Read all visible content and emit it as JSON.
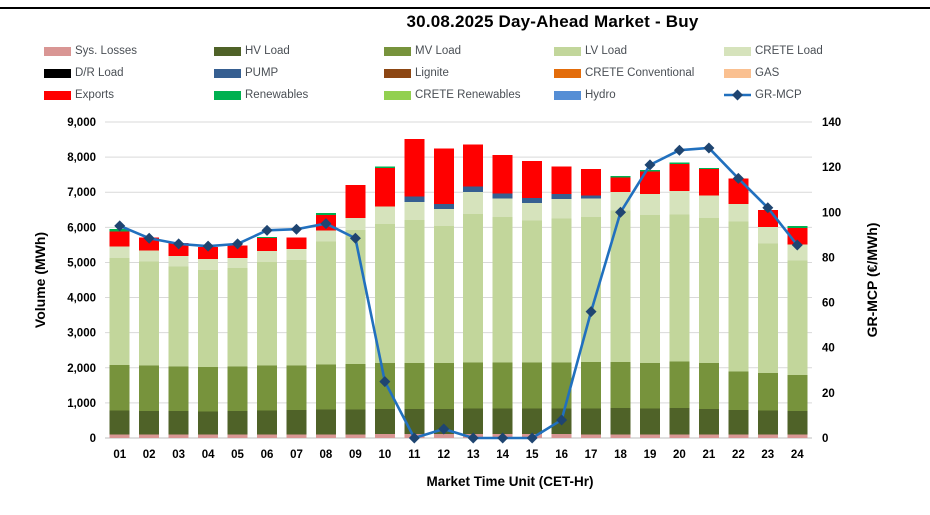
{
  "page": {
    "title": "30.08.2025  Day-Ahead Market - Buy"
  },
  "chart_data": {
    "type": "bar",
    "subtype": "stacked-bar-with-line",
    "title": "30.08.2025  Day-Ahead Market - Buy",
    "xlabel": "Market Time Unit (CET-Hr)",
    "ylabel_left": "Volume (MWh)",
    "ylabel_right": "GR-MCP (€/MWh)",
    "grid": true,
    "legend_position": "top",
    "axis_left": {
      "min": 0,
      "max": 9000,
      "step": 1000
    },
    "axis_right": {
      "min": 0,
      "max": 140,
      "step": 20
    },
    "categories": [
      "01",
      "02",
      "03",
      "04",
      "05",
      "06",
      "07",
      "08",
      "09",
      "10",
      "11",
      "12",
      "13",
      "14",
      "15",
      "16",
      "17",
      "18",
      "19",
      "20",
      "21",
      "22",
      "23",
      "24"
    ],
    "series": [
      {
        "name": "Sys. Losses",
        "color": "#D99694",
        "values": [
          100,
          100,
          95,
          95,
          95,
          95,
          100,
          100,
          105,
          110,
          110,
          110,
          110,
          110,
          110,
          110,
          105,
          105,
          100,
          105,
          100,
          100,
          95,
          95
        ]
      },
      {
        "name": "HV Load",
        "color": "#4F6228",
        "values": [
          680,
          675,
          670,
          665,
          670,
          690,
          700,
          705,
          710,
          715,
          715,
          720,
          730,
          730,
          730,
          730,
          740,
          750,
          740,
          745,
          720,
          700,
          690,
          680
        ]
      },
      {
        "name": "MV Load",
        "color": "#77933C",
        "values": [
          1300,
          1285,
          1265,
          1260,
          1265,
          1275,
          1270,
          1295,
          1295,
          1305,
          1305,
          1300,
          1310,
          1310,
          1310,
          1310,
          1315,
          1305,
          1290,
          1325,
          1310,
          1090,
          1060,
          1020
        ]
      },
      {
        "name": "LV Load",
        "color": "#C2D69B",
        "values": [
          3040,
          2960,
          2850,
          2770,
          2810,
          2950,
          3000,
          3490,
          3820,
          3960,
          4080,
          3910,
          4235,
          4150,
          4050,
          4100,
          4140,
          4320,
          4220,
          4190,
          4130,
          4270,
          3700,
          3260
        ]
      },
      {
        "name": "CRETE Load",
        "color": "#D6E3BC",
        "values": [
          330,
          320,
          310,
          310,
          290,
          310,
          320,
          320,
          330,
          500,
          505,
          485,
          615,
          520,
          500,
          550,
          520,
          520,
          600,
          675,
          640,
          500,
          470,
          450
        ]
      },
      {
        "name": "D/R Load",
        "color": "#000000",
        "values": [
          0,
          0,
          0,
          0,
          0,
          0,
          0,
          0,
          0,
          0,
          0,
          0,
          0,
          0,
          0,
          0,
          0,
          0,
          0,
          0,
          0,
          0,
          0,
          0
        ]
      },
      {
        "name": "PUMP",
        "color": "#365F91",
        "values": [
          0,
          0,
          0,
          0,
          0,
          0,
          0,
          0,
          0,
          0,
          160,
          145,
          160,
          140,
          140,
          150,
          80,
          0,
          0,
          0,
          0,
          0,
          0,
          0
        ]
      },
      {
        "name": "Lignite",
        "color": "#8C4613",
        "values": [
          0,
          0,
          0,
          0,
          0,
          0,
          0,
          0,
          0,
          0,
          0,
          0,
          0,
          0,
          0,
          0,
          0,
          0,
          0,
          0,
          0,
          0,
          0,
          0
        ]
      },
      {
        "name": "CRETE Conventional",
        "color": "#E36C0A",
        "values": [
          0,
          0,
          0,
          0,
          0,
          0,
          0,
          0,
          0,
          0,
          0,
          0,
          0,
          0,
          0,
          0,
          0,
          0,
          0,
          0,
          0,
          0,
          0,
          0
        ]
      },
      {
        "name": "GAS",
        "color": "#FAC090",
        "values": [
          0,
          0,
          0,
          0,
          0,
          0,
          0,
          0,
          0,
          0,
          0,
          0,
          0,
          0,
          0,
          0,
          0,
          0,
          0,
          0,
          0,
          0,
          0,
          0
        ]
      },
      {
        "name": "Exports",
        "color": "#FF0000",
        "values": [
          430,
          370,
          360,
          340,
          350,
          380,
          320,
          435,
          940,
          1095,
          1635,
          1580,
          1200,
          1100,
          1050,
          780,
          755,
          420,
          640,
          760,
          760,
          730,
          480,
          475
        ]
      },
      {
        "name": "Renewables",
        "color": "#00B050",
        "values": [
          70,
          0,
          0,
          0,
          0,
          20,
          0,
          60,
          0,
          45,
          0,
          0,
          0,
          0,
          0,
          0,
          0,
          40,
          45,
          45,
          30,
          0,
          0,
          65
        ]
      },
      {
        "name": "CRETE Renewables",
        "color": "#92D050",
        "values": [
          0,
          0,
          0,
          0,
          0,
          0,
          0,
          0,
          0,
          0,
          0,
          0,
          0,
          0,
          0,
          0,
          0,
          0,
          0,
          0,
          0,
          0,
          0,
          0
        ]
      },
      {
        "name": "Hydro",
        "color": "#558ED5",
        "values": [
          0,
          0,
          0,
          0,
          0,
          0,
          0,
          0,
          0,
          0,
          0,
          0,
          0,
          0,
          0,
          0,
          0,
          0,
          0,
          0,
          0,
          0,
          0,
          0
        ]
      }
    ],
    "line_series": {
      "name": "GR-MCP",
      "axis": "right",
      "line_color": "#2170BE",
      "marker_color": "#1F4571",
      "values": [
        94,
        88.5,
        86,
        85,
        86,
        92,
        92.5,
        95,
        88.5,
        25,
        0,
        4,
        0,
        0,
        0,
        8,
        56,
        100,
        121,
        127.5,
        128.5,
        115,
        102,
        85.5
      ]
    },
    "legend": [
      {
        "label": "Sys. Losses",
        "color": "#D99694",
        "type": "box"
      },
      {
        "label": "HV Load",
        "color": "#4F6228",
        "type": "box"
      },
      {
        "label": "MV Load",
        "color": "#77933C",
        "type": "box"
      },
      {
        "label": "LV Load",
        "color": "#C2D69B",
        "type": "box"
      },
      {
        "label": "CRETE Load",
        "color": "#D6E3BC",
        "type": "box"
      },
      {
        "label": "D/R Load",
        "color": "#000000",
        "type": "box"
      },
      {
        "label": "PUMP",
        "color": "#365F91",
        "type": "box"
      },
      {
        "label": "Lignite",
        "color": "#8C4613",
        "type": "box"
      },
      {
        "label": "CRETE Conventional",
        "color": "#E36C0A",
        "type": "box"
      },
      {
        "label": "GAS",
        "color": "#FAC090",
        "type": "box"
      },
      {
        "label": "Exports",
        "color": "#FF0000",
        "type": "box"
      },
      {
        "label": "Renewables",
        "color": "#00B050",
        "type": "box"
      },
      {
        "label": "CRETE Renewables",
        "color": "#92D050",
        "type": "box"
      },
      {
        "label": "Hydro",
        "color": "#558ED5",
        "type": "box"
      },
      {
        "label": "GR-MCP",
        "color": "#2170BE",
        "marker": "#1F4571",
        "type": "line"
      }
    ]
  }
}
